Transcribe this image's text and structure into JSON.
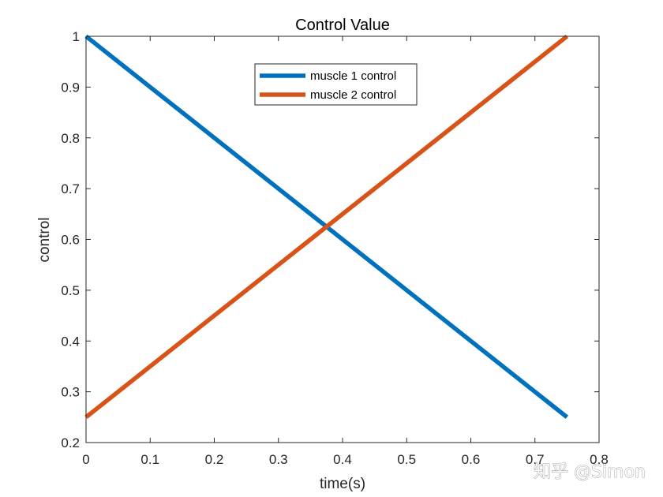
{
  "chart_data": {
    "type": "line",
    "title": "Control Value",
    "xlabel": "time(s)",
    "ylabel": "control",
    "xlim": [
      0,
      0.8
    ],
    "ylim": [
      0.2,
      1.0
    ],
    "xticks": [
      0,
      0.1,
      0.2,
      0.3,
      0.4,
      0.5,
      0.6,
      0.7,
      0.8
    ],
    "xtick_labels": [
      "0",
      "0.1",
      "0.2",
      "0.3",
      "0.4",
      "0.5",
      "0.6",
      "0.7",
      "0.8"
    ],
    "yticks": [
      0.2,
      0.3,
      0.4,
      0.5,
      0.6,
      0.7,
      0.8,
      0.9,
      1.0
    ],
    "ytick_labels": [
      "0.2",
      "0.3",
      "0.4",
      "0.5",
      "0.6",
      "0.7",
      "0.8",
      "0.9",
      "1"
    ],
    "grid": false,
    "legend_position": "top-center",
    "series": [
      {
        "name": "muscle 1 control",
        "color": "#0072BD",
        "x": [
          0,
          0.75
        ],
        "y": [
          1.0,
          0.25
        ]
      },
      {
        "name": "muscle 2 control",
        "color": "#D95319",
        "x": [
          0,
          0.75
        ],
        "y": [
          0.25,
          1.0
        ]
      }
    ]
  },
  "watermark": "知乎 @Simon"
}
